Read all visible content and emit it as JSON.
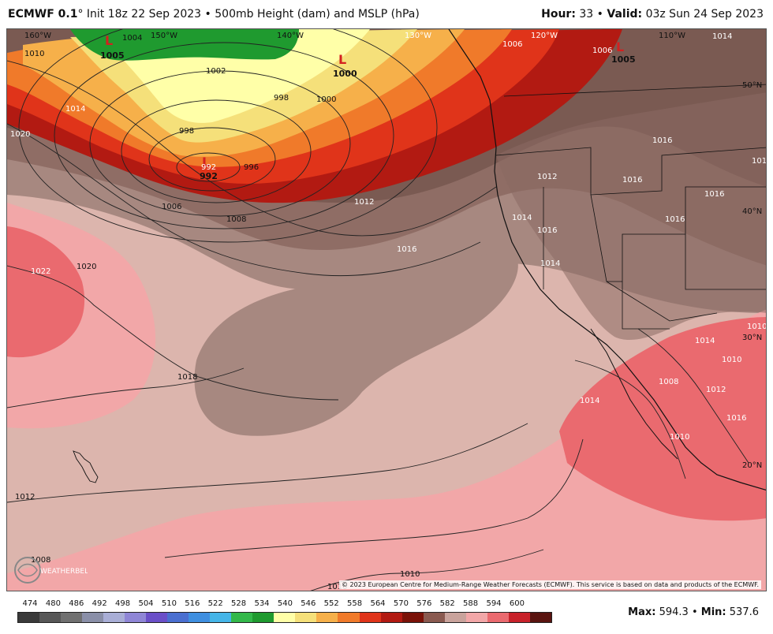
{
  "header": {
    "model": "ECMWF 0.1",
    "degree": "°",
    "init": "Init 18z 22 Sep 2023",
    "separator": "•",
    "product": "500mb Height (dam) and MSLP (hPa)",
    "hour_label": "Hour:",
    "hour_value": "33",
    "valid_label": "Valid:",
    "valid_value": "03z Sun 24 Sep 2023"
  },
  "map": {
    "longitude_labels": [
      "160°W",
      "150°W",
      "140°W",
      "130°W",
      "120°W",
      "110°W"
    ],
    "latitude_labels": [
      "50°N",
      "40°N",
      "30°N",
      "20°N"
    ],
    "lows": [
      {
        "symbol": "L",
        "pressure": "1005"
      },
      {
        "symbol": "L",
        "pressure": "1000"
      },
      {
        "symbol": "L",
        "pressure": "992"
      },
      {
        "symbol": "L",
        "pressure": "1005"
      }
    ],
    "isobar_labels": [
      "1010",
      "1004",
      "1002",
      "998",
      "1000",
      "1014",
      "1020",
      "998",
      "996",
      "992",
      "1006",
      "1008",
      "1012",
      "1016",
      "1020",
      "1022",
      "1018",
      "1012",
      "1014",
      "1016",
      "1012",
      "1016",
      "1016",
      "1014",
      "1008",
      "1010",
      "1012",
      "1016",
      "1014",
      "1010",
      "1010",
      "1008",
      "1010",
      "1010",
      "1006",
      "1006",
      "1014",
      "1012",
      "1016",
      "1016",
      "1014"
    ],
    "copyright": "© 2023 European Centre for Medium-Range Weather Forecasts (ECMWF). This service is based on data and products of the ECMWF.",
    "logo_text": "WEATHERBELL"
  },
  "colorbar": {
    "labels": [
      "474",
      "480",
      "486",
      "492",
      "498",
      "504",
      "510",
      "516",
      "522",
      "528",
      "534",
      "540",
      "546",
      "552",
      "558",
      "564",
      "570",
      "576",
      "582",
      "588",
      "594",
      "600"
    ],
    "colors": [
      "#3a3a3a",
      "#575757",
      "#707070",
      "#8a8fa8",
      "#a9aed6",
      "#8f86d6",
      "#6a4fc8",
      "#4a6fd0",
      "#3f8fe0",
      "#45b5e8",
      "#33b84a",
      "#1f9a2f",
      "#ffffa8",
      "#f5e07a",
      "#f6b04a",
      "#f07a2a",
      "#e0341a",
      "#b21a12",
      "#7a1208",
      "#8a5a50",
      "#c9a39c",
      "#f2a7a8",
      "#ea6a6f",
      "#c8222a",
      "#5a1410"
    ],
    "max_label": "Max:",
    "max_value": "594.3",
    "min_label": "Min:",
    "min_value": "537.6"
  }
}
